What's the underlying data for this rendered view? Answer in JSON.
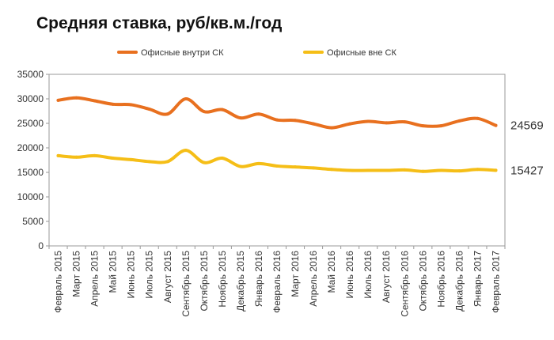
{
  "chart_data": {
    "type": "line",
    "title": "Средняя ставка, руб/кв.м./год",
    "categories": [
      "Февраль 2015",
      "Март 2015",
      "Апрель 2015",
      "Май 2015",
      "Июнь 2015",
      "Июль 2015",
      "Август 2015",
      "Сентябрь 2015",
      "Октябрь 2015",
      "Ноябрь 2015",
      "Декабрь 2015",
      "Январь 2016",
      "Февраль 2016",
      "Март 2016",
      "Апрель 2016",
      "Май 2016",
      "Июнь 2016",
      "Июль 2016",
      "Август 2016",
      "Сентябрь 2016",
      "Октябрь 2016",
      "Ноябрь 2016",
      "Декабрь 2016",
      "Январь 2017",
      "Февраль 2017"
    ],
    "series": [
      {
        "name": "Офисные  внутри СК",
        "color": "#e8701f",
        "values": [
          29700,
          30200,
          29600,
          28900,
          28800,
          27900,
          26900,
          30000,
          27400,
          27800,
          26100,
          26900,
          25700,
          25600,
          24900,
          24100,
          24900,
          25400,
          25100,
          25300,
          24500,
          24500,
          25500,
          26000,
          24569
        ]
      },
      {
        "name": "Офисные вне СК",
        "color": "#f5be17",
        "values": [
          18400,
          18100,
          18400,
          17900,
          17600,
          17200,
          17200,
          19500,
          17000,
          17900,
          16200,
          16800,
          16300,
          16100,
          15900,
          15600,
          15400,
          15400,
          15400,
          15500,
          15200,
          15400,
          15300,
          15600,
          15427
        ]
      }
    ],
    "end_labels": [
      "24569",
      "15427"
    ],
    "ylim": [
      0,
      35000
    ],
    "yticks": [
      "0",
      "5000",
      "10000",
      "15000",
      "20000",
      "25000",
      "30000",
      "35000"
    ],
    "grid": false,
    "legend_position": "top"
  }
}
